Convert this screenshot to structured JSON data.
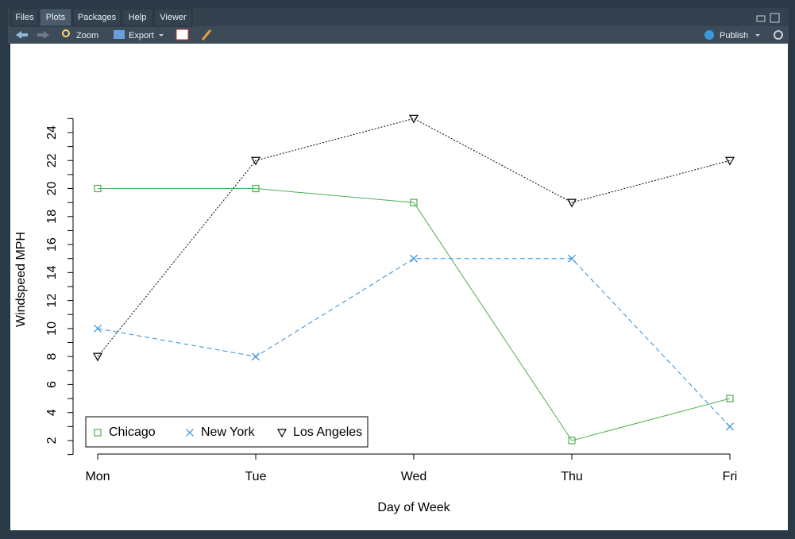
{
  "ui": {
    "tabs": [
      "Files",
      "Plots",
      "Packages",
      "Help",
      "Viewer"
    ],
    "active_tab": 1,
    "toolbar": {
      "zoom": "Zoom",
      "export": "Export",
      "publish": "Publish"
    }
  },
  "chart_data": {
    "type": "line",
    "categories": [
      "Mon",
      "Tue",
      "Wed",
      "Thu",
      "Fri"
    ],
    "series": [
      {
        "name": "Chicago",
        "color": "#4caf50",
        "line": "solid",
        "marker": "square",
        "values": [
          20,
          20,
          19,
          2,
          5
        ]
      },
      {
        "name": "New York",
        "color": "#2f8fd8",
        "line": "dashed",
        "marker": "x",
        "values": [
          10,
          8,
          15,
          15,
          3
        ]
      },
      {
        "name": "Los Angeles",
        "color": "#000000",
        "line": "dotted",
        "marker": "triangle-down",
        "values": [
          8,
          22,
          25,
          19,
          22
        ]
      }
    ],
    "xlabel": "Day of Week",
    "ylabel": "Windspeed MPH",
    "ylim": [
      1.08,
      25.92
    ],
    "yticks": [
      2,
      4,
      6,
      8,
      10,
      12,
      14,
      16,
      18,
      20,
      22,
      24
    ],
    "yminorticks": [
      1,
      3,
      5,
      7,
      9,
      11,
      13,
      15,
      17,
      19,
      21,
      23,
      25
    ],
    "legend": "bottom-left",
    "grid": false
  }
}
